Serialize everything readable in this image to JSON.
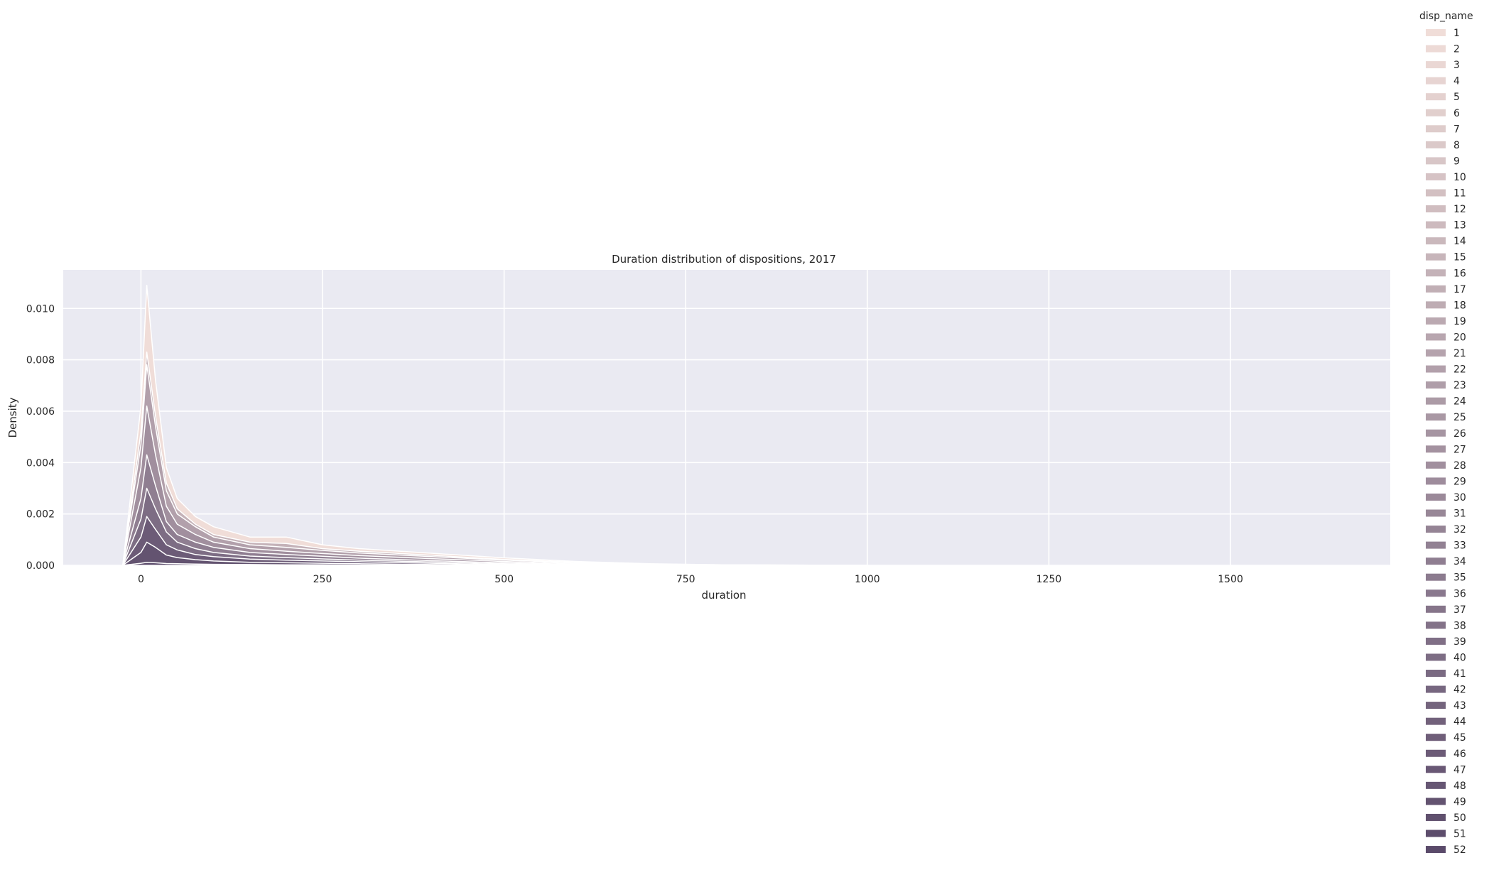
{
  "chart_data": {
    "type": "area",
    "stacked": true,
    "title": "Duration distribution of dispositions, 2017",
    "xlabel": "duration",
    "ylabel": "Density",
    "xlim": [
      -107,
      1720
    ],
    "ylim": [
      0,
      0.0115
    ],
    "x_ticks": [
      0,
      250,
      500,
      750,
      1000,
      1250,
      1500
    ],
    "x_tick_labels": [
      "0",
      "250",
      "500",
      "750",
      "1000",
      "1250",
      "1500"
    ],
    "y_ticks": [
      0,
      0.002,
      0.004,
      0.006,
      0.008,
      0.01
    ],
    "y_tick_labels": [
      "0.000",
      "0.002",
      "0.004",
      "0.006",
      "0.008",
      "0.010"
    ],
    "grid": true,
    "background": "#eaeaf2",
    "palette_light": "#f0ddd8",
    "palette_dark": "#5a4a6a",
    "edge_color": "#ffffff",
    "legend": {
      "title": "disp_name",
      "placement": "outside-right",
      "entries": [
        "1",
        "2",
        "3",
        "4",
        "5",
        "6",
        "7",
        "8",
        "9",
        "10",
        "11",
        "12",
        "13",
        "14",
        "15",
        "16",
        "17",
        "18",
        "19",
        "20",
        "21",
        "22",
        "23",
        "24",
        "25",
        "26",
        "27",
        "28",
        "29",
        "30",
        "31",
        "32",
        "33",
        "34",
        "35",
        "36",
        "37",
        "38",
        "39",
        "40",
        "41",
        "42",
        "43",
        "44",
        "45",
        "46",
        "47",
        "48",
        "49",
        "50",
        "51",
        "52"
      ]
    },
    "cumulative_boundaries": {
      "x": [
        -25,
        0,
        8,
        20,
        35,
        50,
        75,
        100,
        150,
        200,
        250,
        300,
        400,
        500,
        600,
        700,
        800,
        1000
      ],
      "levels": [
        {
          "top_of_series": 52,
          "y": [
            0,
            8e-05,
            0.00012,
            0.0001,
            7e-05,
            6e-05,
            5e-05,
            4e-05,
            3e-05,
            2e-05,
            2e-05,
            1e-05,
            0,
            0,
            0,
            0,
            0,
            0
          ]
        },
        {
          "top_of_series": 49,
          "y": [
            0,
            0.0005,
            0.0009,
            0.0007,
            0.0004,
            0.0003,
            0.00022,
            0.00017,
            0.00012,
            0.0001,
            8e-05,
            6e-05,
            3e-05,
            1e-05,
            0,
            0,
            0,
            0
          ]
        },
        {
          "top_of_series": 46,
          "y": [
            0,
            0.0011,
            0.0019,
            0.0014,
            0.0008,
            0.0006,
            0.00042,
            0.00034,
            0.00024,
            0.0002,
            0.00017,
            0.00014,
            8e-05,
            3e-05,
            1e-05,
            0,
            0,
            0
          ]
        },
        {
          "top_of_series": 40,
          "y": [
            0,
            0.0018,
            0.003,
            0.0022,
            0.0013,
            0.0009,
            0.00065,
            0.0005,
            0.00036,
            0.0003,
            0.00025,
            0.0002,
            0.00013,
            6e-05,
            2e-05,
            0,
            0,
            0
          ]
        },
        {
          "top_of_series": 34,
          "y": [
            0,
            0.0026,
            0.0043,
            0.0031,
            0.0017,
            0.0012,
            0.0009,
            0.0007,
            0.0005,
            0.00042,
            0.00035,
            0.00028,
            0.00018,
            0.0001,
            4e-05,
            1e-05,
            0,
            0
          ]
        },
        {
          "top_of_series": 28,
          "y": [
            0,
            0.0038,
            0.0062,
            0.0043,
            0.0023,
            0.0016,
            0.0012,
            0.0009,
            0.00065,
            0.00055,
            0.00046,
            0.00038,
            0.00026,
            0.00015,
            7e-05,
            3e-05,
            1e-05,
            0
          ]
        },
        {
          "top_of_series": 22,
          "y": [
            0,
            0.0047,
            0.0078,
            0.0054,
            0.0029,
            0.002,
            0.0015,
            0.0011,
            0.0008,
            0.0007,
            0.00058,
            0.00048,
            0.00034,
            0.0002,
            0.0001,
            4e-05,
            1e-05,
            0
          ]
        },
        {
          "top_of_series": 16,
          "y": [
            0,
            0.0052,
            0.0083,
            0.0058,
            0.0032,
            0.0022,
            0.0016,
            0.0012,
            0.0009,
            0.00085,
            0.00065,
            0.00055,
            0.00039,
            0.00023,
            0.00012,
            5e-05,
            2e-05,
            0
          ]
        },
        {
          "top_of_series": 1,
          "y": [
            0,
            0.0062,
            0.0109,
            0.0072,
            0.0038,
            0.0026,
            0.0019,
            0.0015,
            0.0011,
            0.0011,
            0.0008,
            0.00065,
            0.00047,
            0.00029,
            0.00015,
            6e-05,
            2e-05,
            0
          ]
        }
      ]
    }
  }
}
